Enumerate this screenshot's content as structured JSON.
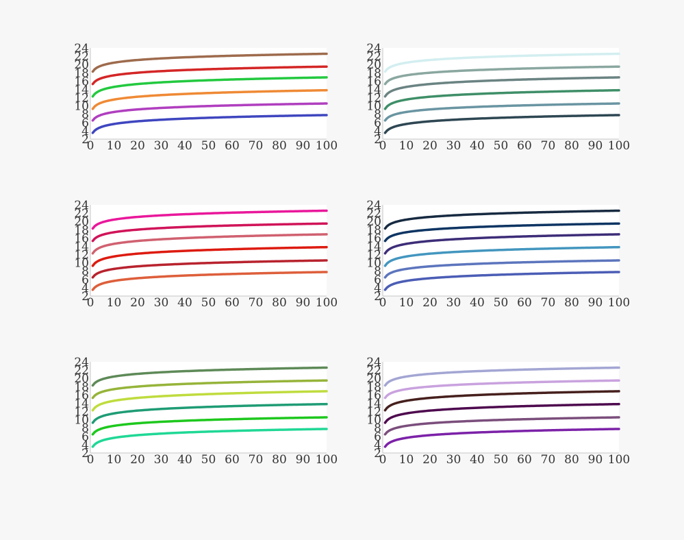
{
  "chart_data": [
    {
      "type": "line",
      "x": [
        1,
        100
      ],
      "xticks": [
        0,
        10,
        20,
        30,
        40,
        50,
        60,
        70,
        80,
        90,
        100
      ],
      "yticks": [
        2,
        4,
        6,
        8,
        10,
        12,
        14,
        16,
        18,
        20,
        22,
        24
      ],
      "xlim": [
        0,
        100
      ],
      "ylim": [
        2,
        24
      ],
      "grid": false,
      "series": [
        {
          "color": "#3f46bf",
          "start": 3.5,
          "end": 7.8
        },
        {
          "color": "#b03fbf",
          "start": 6.5,
          "end": 10.6
        },
        {
          "color": "#ef8a35",
          "start": 9.3,
          "end": 13.8
        },
        {
          "color": "#23c93f",
          "start": 12.3,
          "end": 16.9
        },
        {
          "color": "#d42626",
          "start": 15.3,
          "end": 19.5
        },
        {
          "color": "#9e6b4d",
          "start": 18.3,
          "end": 22.6
        }
      ]
    },
    {
      "type": "line",
      "x": [
        1,
        100
      ],
      "xticks": [
        0,
        10,
        20,
        30,
        40,
        50,
        60,
        70,
        80,
        90,
        100
      ],
      "yticks": [
        2,
        4,
        6,
        8,
        10,
        12,
        14,
        16,
        18,
        20,
        22,
        24
      ],
      "xlim": [
        0,
        100
      ],
      "ylim": [
        2,
        24
      ],
      "grid": false,
      "series": [
        {
          "color": "#2e4753",
          "start": 3.5,
          "end": 7.8
        },
        {
          "color": "#6a95a2",
          "start": 6.5,
          "end": 10.6
        },
        {
          "color": "#3f8f68",
          "start": 9.3,
          "end": 13.8
        },
        {
          "color": "#6b8383",
          "start": 12.3,
          "end": 16.9
        },
        {
          "color": "#8aa7a0",
          "start": 15.3,
          "end": 19.5
        },
        {
          "color": "#d3eef0",
          "start": 18.3,
          "end": 22.6
        }
      ]
    },
    {
      "type": "line",
      "x": [
        1,
        100
      ],
      "xticks": [
        0,
        10,
        20,
        30,
        40,
        50,
        60,
        70,
        80,
        90,
        100
      ],
      "yticks": [
        2,
        4,
        6,
        8,
        10,
        12,
        14,
        16,
        18,
        20,
        22,
        24
      ],
      "xlim": [
        0,
        100
      ],
      "ylim": [
        2,
        24
      ],
      "grid": false,
      "series": [
        {
          "color": "#dd5f3b",
          "start": 3.5,
          "end": 7.8
        },
        {
          "color": "#b8232e",
          "start": 6.5,
          "end": 10.6
        },
        {
          "color": "#dd1b10",
          "start": 9.3,
          "end": 13.8
        },
        {
          "color": "#d06170",
          "start": 12.3,
          "end": 16.9
        },
        {
          "color": "#d01459",
          "start": 15.3,
          "end": 19.5
        },
        {
          "color": "#e9189b",
          "start": 18.3,
          "end": 22.6
        }
      ]
    },
    {
      "type": "line",
      "x": [
        1,
        100
      ],
      "xticks": [
        0,
        10,
        20,
        30,
        40,
        50,
        60,
        70,
        80,
        90,
        100
      ],
      "yticks": [
        2,
        4,
        6,
        8,
        10,
        12,
        14,
        16,
        18,
        20,
        22,
        24
      ],
      "xlim": [
        0,
        100
      ],
      "ylim": [
        2,
        24
      ],
      "grid": false,
      "series": [
        {
          "color": "#4b5db5",
          "start": 3.5,
          "end": 7.8
        },
        {
          "color": "#5c75bd",
          "start": 6.5,
          "end": 10.6
        },
        {
          "color": "#4396bf",
          "start": 9.3,
          "end": 13.8
        },
        {
          "color": "#3d2d78",
          "start": 12.3,
          "end": 16.9
        },
        {
          "color": "#0e3563",
          "start": 15.3,
          "end": 19.5
        },
        {
          "color": "#172a41",
          "start": 18.3,
          "end": 22.6
        }
      ]
    },
    {
      "type": "line",
      "x": [
        1,
        100
      ],
      "xticks": [
        0,
        10,
        20,
        30,
        40,
        50,
        60,
        70,
        80,
        90,
        100
      ],
      "yticks": [
        2,
        4,
        6,
        8,
        10,
        12,
        14,
        16,
        18,
        20,
        22,
        24
      ],
      "xlim": [
        0,
        100
      ],
      "ylim": [
        2,
        24
      ],
      "grid": false,
      "series": [
        {
          "color": "#20d896",
          "start": 3.5,
          "end": 7.8
        },
        {
          "color": "#1ec81e",
          "start": 6.5,
          "end": 10.6
        },
        {
          "color": "#1f9c75",
          "start": 9.3,
          "end": 13.8
        },
        {
          "color": "#bfdc3e",
          "start": 12.3,
          "end": 16.9
        },
        {
          "color": "#96b43a",
          "start": 15.3,
          "end": 19.5
        },
        {
          "color": "#5e8a58",
          "start": 18.3,
          "end": 22.6
        }
      ]
    },
    {
      "type": "line",
      "x": [
        1,
        100
      ],
      "xticks": [
        0,
        10,
        20,
        30,
        40,
        50,
        60,
        70,
        80,
        90,
        100
      ],
      "yticks": [
        2,
        4,
        6,
        8,
        10,
        12,
        14,
        16,
        18,
        20,
        22,
        24
      ],
      "xlim": [
        0,
        100
      ],
      "ylim": [
        2,
        24
      ],
      "grid": false,
      "series": [
        {
          "color": "#7c22a8",
          "start": 3.5,
          "end": 7.8
        },
        {
          "color": "#7b4e7c",
          "start": 6.5,
          "end": 10.6
        },
        {
          "color": "#4e0a4e",
          "start": 9.3,
          "end": 13.8
        },
        {
          "color": "#46201d",
          "start": 12.3,
          "end": 16.9
        },
        {
          "color": "#c9a2de",
          "start": 15.3,
          "end": 19.5
        },
        {
          "color": "#a3a6d3",
          "start": 18.3,
          "end": 22.6
        }
      ]
    }
  ]
}
